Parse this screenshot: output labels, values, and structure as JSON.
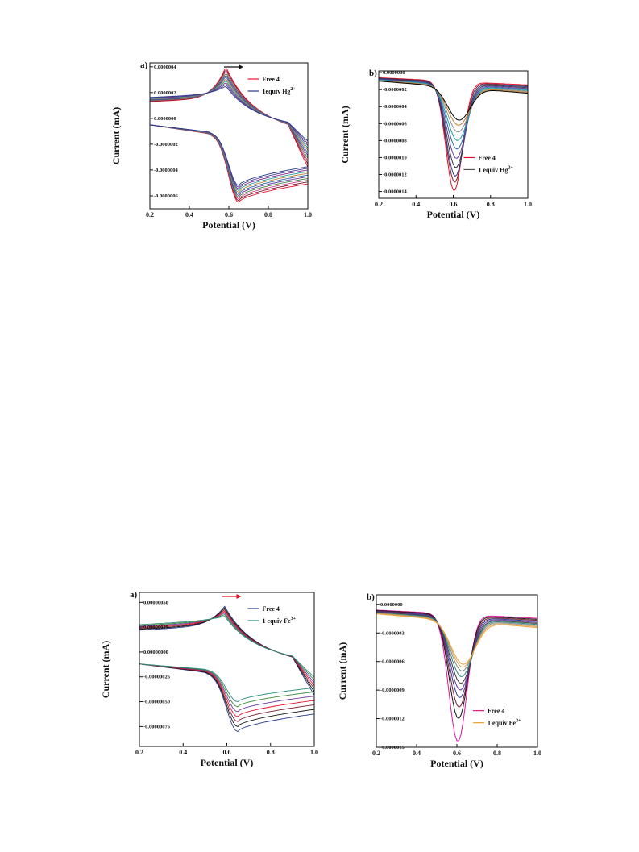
{
  "figures": [
    {
      "panel_label": "a)",
      "chart_data": {
        "type": "line",
        "xlabel": "Potential (V)",
        "ylabel": "Current (mA)",
        "xlim": [
          0.2,
          1.0
        ],
        "ylim": [
          -7e-07,
          4.3e-07
        ],
        "x_ticks": [
          "0.2",
          "0.4",
          "0.6",
          "0.8",
          "1.0"
        ],
        "x_tick_values": [
          0.2,
          0.4,
          0.6,
          0.8,
          1.0
        ],
        "y_ticks": [
          "0.0000004",
          "0.0000002",
          "0.0000000",
          "-0.0000002",
          "-0.0000004",
          "-0.0000006"
        ],
        "y_tick_values": [
          4e-07,
          2e-07,
          0.0,
          -2e-07,
          -4e-07,
          -6e-07
        ],
        "grid": false,
        "legend_position": "top-right",
        "legend": [
          {
            "label": "Free 4",
            "color": "#e8112d"
          },
          {
            "label": "1equiv Hg",
            "sup": "2+",
            "color": "#2b3a8c"
          }
        ],
        "arrow_direction": "right",
        "arrow_color": "#111111",
        "curve_kind": "cv",
        "series_count": 11,
        "series_colors": [
          "#e8112d",
          "#7a1a2a",
          "#d24a8a",
          "#3a8a3a",
          "#6a3aa0",
          "#2a6ab0",
          "#c08030",
          "#20a0a0",
          "#8a2a8a",
          "#4a4a9a",
          "#2b3a8c"
        ],
        "peak_anodic": {
          "x": 0.585,
          "y_first": 4e-07,
          "y_last": 2.5e-07
        },
        "peak_cathodic": {
          "x": 0.65,
          "y_first": -6.5e-07,
          "y_last": -5.2e-07
        },
        "baseline_start_upper": 1.3e-07,
        "baseline_start_lower": -5e-08
      }
    },
    {
      "panel_label": "b)",
      "chart_data": {
        "type": "line",
        "xlabel": "Potential (V)",
        "ylabel": "Current (mA)",
        "xlim": [
          0.2,
          1.0
        ],
        "ylim": [
          -1.48e-06,
          2e-08
        ],
        "x_ticks": [
          "0.2",
          "0.4",
          "0.6",
          "0.8",
          "1.0"
        ],
        "x_tick_values": [
          0.2,
          0.4,
          0.6,
          0.8,
          1.0
        ],
        "y_ticks": [
          "0.0000000",
          "-0.0000002",
          "-0.0000004",
          "-0.0000006",
          "-0.0000008",
          "-0.0000010",
          "-0.0000012",
          "-0.0000014"
        ],
        "y_tick_values": [
          0.0,
          -2e-07,
          -4e-07,
          -6e-07,
          -8e-07,
          -1e-06,
          -1.2e-06,
          -1.4e-06
        ],
        "grid": false,
        "legend_position": "lower-left",
        "legend": [
          {
            "label": "Free 4",
            "color": "#e8112d"
          },
          {
            "label": "1 equiv Hg",
            "sup": "2+",
            "color": "#555555"
          }
        ],
        "curve_kind": "dpv",
        "peak_x": 0.605,
        "peak_depths": [
          -1.39e-06,
          -1.29e-06,
          -1.22e-06,
          -1.12e-06,
          -1.01e-06,
          -9e-07,
          -8e-07,
          -7e-07,
          -6.2e-07,
          -5.6e-07
        ],
        "series_colors": [
          "#e8112d",
          "#7a1a2a",
          "#2b3a8c",
          "#3a3a3a",
          "#6a3aa0",
          "#2a6ab0",
          "#20a0a0",
          "#8a8a8a",
          "#c08030",
          "#000000"
        ]
      }
    },
    {
      "panel_label": "a)",
      "chart_data": {
        "type": "line",
        "xlabel": "Potential (V)",
        "ylabel": "Current (mA)",
        "xlim": [
          0.2,
          1.0
        ],
        "ylim": [
          -9.5e-07,
          6e-07
        ],
        "x_ticks": [
          "0.2",
          "0.4",
          "0.6",
          "0.8",
          "1.0"
        ],
        "x_tick_values": [
          0.2,
          0.4,
          0.6,
          0.8,
          1.0
        ],
        "y_ticks": [
          "0.00000050",
          "0.00000025",
          "0.00000000",
          "-0.00000025",
          "-0.00000050",
          "-0.00000075"
        ],
        "y_tick_values": [
          5e-07,
          2.5e-07,
          0.0,
          -2.5e-07,
          -5e-07,
          -7.5e-07
        ],
        "grid": false,
        "legend_position": "top-right",
        "legend": [
          {
            "label": "Free 4",
            "color": "#2b3a8c"
          },
          {
            "label": "1 equiv Fe",
            "sup": "3+",
            "color": "#2a8a7a"
          }
        ],
        "arrow_direction": "right",
        "arrow_color": "#e8112d",
        "curve_kind": "cv",
        "series_count": 7,
        "series_colors": [
          "#2b3a8c",
          "#111111",
          "#7a1a2a",
          "#e8112d",
          "#6a3aa0",
          "#3a8a3a",
          "#2a8a7a"
        ],
        "peak_anodic": {
          "x": 0.59,
          "y_first": 4.6e-07,
          "y_last": 3.6e-07
        },
        "peak_cathodic": {
          "x": 0.65,
          "y_first": -8e-07,
          "y_last": -5e-07
        },
        "baseline_start_upper": 2.2e-07,
        "baseline_start_lower": -1.2e-07
      }
    },
    {
      "panel_label": "b)",
      "chart_data": {
        "type": "line",
        "xlabel": "Potential (V)",
        "ylabel": "Current (mA)",
        "xlim": [
          0.2,
          1.0
        ],
        "ylim": [
          -1.5e-06,
          1e-07
        ],
        "x_ticks": [
          "0.2",
          "0.4",
          "0.6",
          "0.8",
          "1.0"
        ],
        "x_tick_values": [
          0.2,
          0.4,
          0.6,
          0.8,
          1.0
        ],
        "y_ticks": [
          "0.0000000",
          "-0.0000003",
          "-0.0000006",
          "-0.0000009",
          "-0.0000012",
          "-0.0000015"
        ],
        "y_tick_values": [
          0.0,
          -3e-07,
          -6e-07,
          -9e-07,
          -1.2e-06,
          -1.5e-06
        ],
        "grid": false,
        "legend_position": "lower-right",
        "legend": [
          {
            "label": "Free 4",
            "color": "#e0109a"
          },
          {
            "label": "1 equiv Fe",
            "sup": "3+",
            "color": "#f0a030"
          }
        ],
        "curve_kind": "dpv",
        "peak_x": 0.605,
        "peak_depths": [
          -1.44e-06,
          -1.2e-06,
          -1.08e-06,
          -9.8e-07,
          -9e-07,
          -8.3e-07,
          -7.6e-07,
          -7e-07,
          -6.6e-07,
          -6.3e-07
        ],
        "series_colors": [
          "#e0109a",
          "#111111",
          "#7a1a2a",
          "#2b3a8c",
          "#6a3aa0",
          "#3a3a3a",
          "#2a8a7a",
          "#888888",
          "#d2a060",
          "#f0a030"
        ]
      }
    }
  ]
}
